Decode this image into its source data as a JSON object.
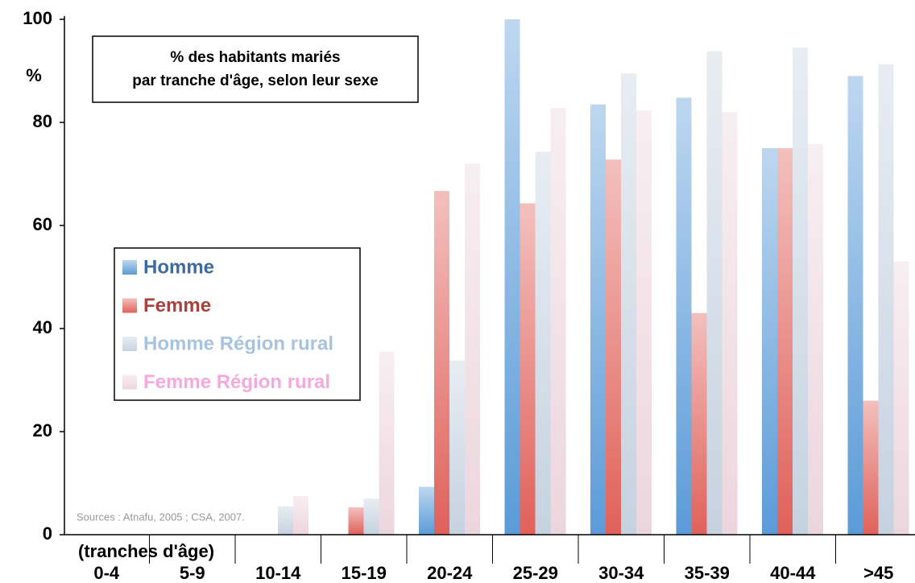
{
  "chart_data": {
    "type": "bar",
    "title": [
      "% des habitants mariés",
      "par tranche d'âge, selon leur sexe"
    ],
    "y_label": "%",
    "x_label": "(tranches d'âge)",
    "note": "Sources : Atnafu, 2005 ; CSA, 2007.",
    "categories": [
      "0-4",
      "5-9",
      "10-14",
      "15-19",
      "20-24",
      "25-29",
      "30-34",
      "35-39",
      "40-44",
      ">45"
    ],
    "series": [
      {
        "name": "Homme",
        "color": "#5b9bd8",
        "text_color": "#3d6c9c",
        "values": [
          0,
          0,
          0,
          0,
          9.3,
          100,
          83.5,
          84.8,
          75,
          89
        ]
      },
      {
        "name": "Femme",
        "color": "#e0615a",
        "text_color": "#a8423f",
        "values": [
          0,
          0,
          0,
          5.3,
          66.7,
          64.3,
          72.8,
          43,
          75,
          26
        ]
      },
      {
        "name": "Homme Région rural",
        "color": "#c6d2e0",
        "text_color": "#a7c3e0",
        "values": [
          0,
          0,
          5.5,
          7,
          33.8,
          74.3,
          89.5,
          93.8,
          94.5,
          91.3
        ]
      },
      {
        "name": "Femme Région rural",
        "color": "#ecd6dd",
        "text_color": "#f6a9dc",
        "values": [
          0,
          0,
          7.5,
          35.5,
          72,
          82.8,
          82.3,
          82,
          75.8,
          53
        ]
      }
    ],
    "ylim": [
      0,
      100
    ],
    "yticks": [
      0,
      20,
      40,
      60,
      80,
      100
    ],
    "grid": false,
    "legend": "left"
  }
}
